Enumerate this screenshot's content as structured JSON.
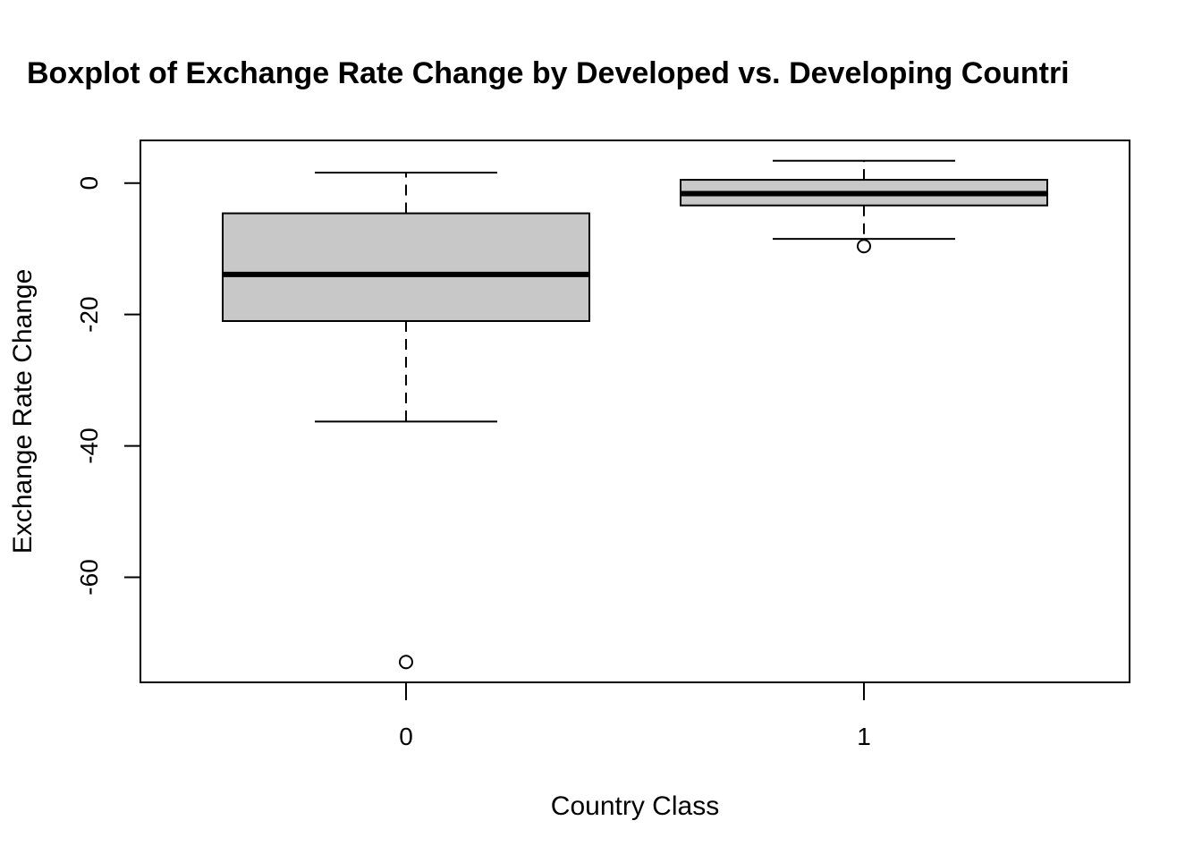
{
  "chart_data": {
    "type": "box",
    "title": "Boxplot of Exchange Rate Change by Developed vs. Developing Countri",
    "xlabel": "Country Class",
    "ylabel": "Exchange Rate Change",
    "categories": [
      "0",
      "1"
    ],
    "yticks": [
      0,
      -20,
      -40,
      -60
    ],
    "ytick_labels": [
      "0",
      "-20",
      "-40",
      "-60"
    ],
    "ylim": [
      -76,
      6.5
    ],
    "grid": false,
    "box_fill": "#c8c8c8",
    "boxes": [
      {
        "category": "0",
        "whisker_low": -36.3,
        "q1": -21.0,
        "median": -13.9,
        "q3": -4.6,
        "whisker_high": 1.6,
        "outliers": [
          -72.9
        ]
      },
      {
        "category": "1",
        "whisker_low": -8.5,
        "q1": -3.4,
        "median": -1.6,
        "q3": 0.5,
        "whisker_high": 3.4,
        "outliers": [
          -9.6
        ]
      }
    ]
  }
}
